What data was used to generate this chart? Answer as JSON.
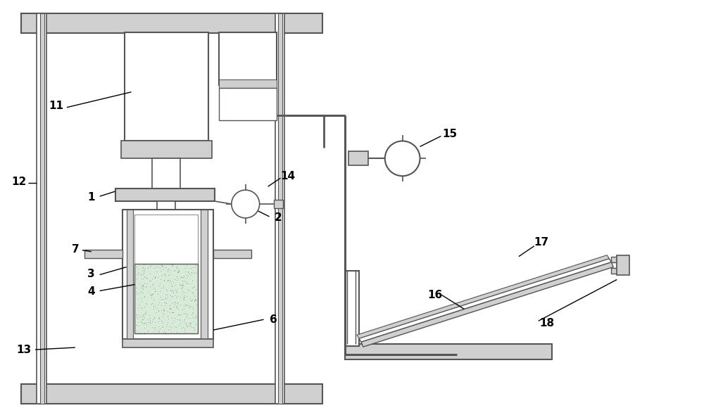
{
  "bg_color": "#ffffff",
  "lc": "#555555",
  "lg": "#d0d0d0",
  "green_fill": "#d8ead8",
  "sample_dot_color": "#aaaaaa"
}
